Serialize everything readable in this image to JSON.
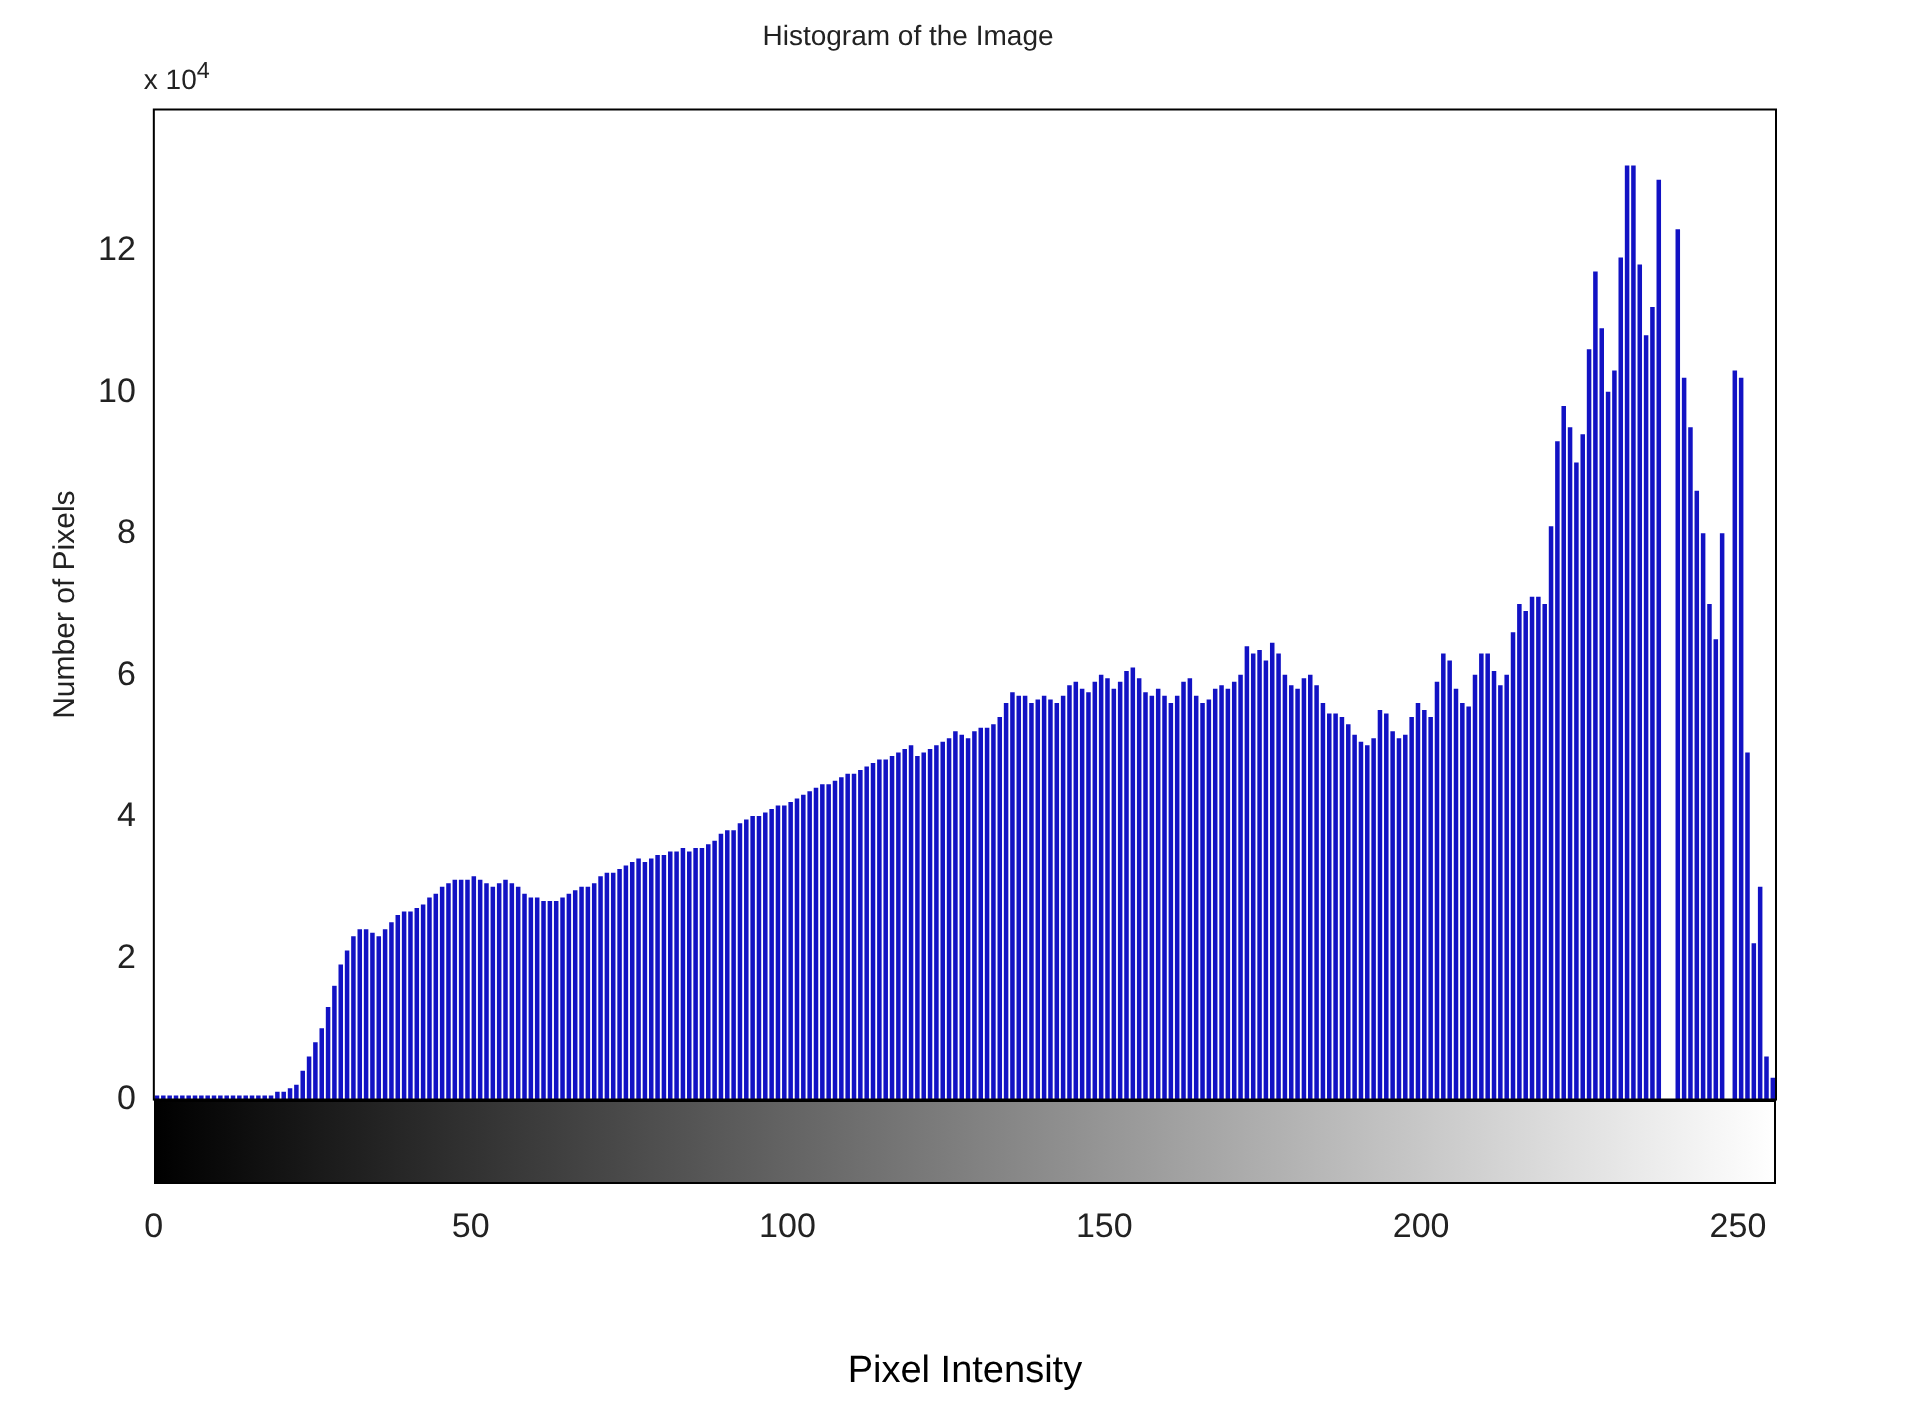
{
  "chart_data": {
    "type": "histogram",
    "title": "Histogram of the Image",
    "xlabel": "Pixel Intensity",
    "ylabel": "Number of Pixels",
    "annotations": [
      "x 10$^{4}$"
    ],
    "bins": [
      0,
      1,
      2,
      3,
      4,
      5,
      6,
      7,
      8,
      9,
      10,
      11,
      12,
      13,
      14,
      15,
      16,
      17,
      18,
      19,
      20,
      21,
      22,
      23,
      24,
      25,
      26,
      27,
      28,
      29,
      30,
      31,
      32,
      33,
      34,
      35,
      36,
      37,
      38,
      39,
      40,
      41,
      42,
      43,
      44,
      45,
      46,
      47,
      48,
      49,
      50,
      51,
      52,
      53,
      54,
      55,
      56,
      57,
      58,
      59,
      60,
      61,
      62,
      63,
      64,
      65,
      66,
      67,
      68,
      69,
      70,
      71,
      72,
      73,
      74,
      75,
      76,
      77,
      78,
      79,
      80,
      81,
      82,
      83,
      84,
      85,
      86,
      87,
      88,
      89,
      90,
      91,
      92,
      93,
      94,
      95,
      96,
      97,
      98,
      99,
      100,
      101,
      102,
      103,
      104,
      105,
      106,
      107,
      108,
      109,
      110,
      111,
      112,
      113,
      114,
      115,
      116,
      117,
      118,
      119,
      120,
      121,
      122,
      123,
      124,
      125,
      126,
      127,
      128,
      129,
      130,
      131,
      132,
      133,
      134,
      135,
      136,
      137,
      138,
      139,
      140,
      141,
      142,
      143,
      144,
      145,
      146,
      147,
      148,
      149,
      150,
      151,
      152,
      153,
      154,
      155,
      156,
      157,
      158,
      159,
      160,
      161,
      162,
      163,
      164,
      165,
      166,
      167,
      168,
      169,
      170,
      171,
      172,
      173,
      174,
      175,
      176,
      177,
      178,
      179,
      180,
      181,
      182,
      183,
      184,
      185,
      186,
      187,
      188,
      189,
      190,
      191,
      192,
      193,
      194,
      195,
      196,
      197,
      198,
      199,
      200,
      201,
      202,
      203,
      204,
      205,
      206,
      207,
      208,
      209,
      210,
      211,
      212,
      213,
      214,
      215,
      216,
      217,
      218,
      219,
      220,
      221,
      222,
      223,
      224,
      225,
      226,
      227,
      228,
      229,
      230,
      231,
      232,
      233,
      234,
      235,
      236,
      237,
      238,
      239,
      240,
      241,
      242,
      243,
      244,
      245,
      246,
      247,
      248,
      249,
      250,
      251,
      252,
      253,
      254,
      255,
      256
    ],
    "values": [
      0.05,
      0.05,
      0.05,
      0.05,
      0.05,
      0.05,
      0.05,
      0.05,
      0.05,
      0.05,
      0.05,
      0.05,
      0.05,
      0.05,
      0.05,
      0.05,
      0.05,
      0.05,
      0.05,
      0.1,
      0.1,
      0.15,
      0.2,
      0.4,
      0.6,
      0.8,
      1.0,
      1.3,
      1.6,
      1.9,
      2.1,
      2.3,
      2.4,
      2.4,
      2.35,
      2.3,
      2.4,
      2.5,
      2.6,
      2.65,
      2.65,
      2.7,
      2.75,
      2.85,
      2.9,
      3.0,
      3.05,
      3.1,
      3.1,
      3.1,
      3.15,
      3.1,
      3.05,
      3.0,
      3.05,
      3.1,
      3.05,
      3.0,
      2.9,
      2.85,
      2.85,
      2.8,
      2.8,
      2.8,
      2.85,
      2.9,
      2.95,
      3.0,
      3.0,
      3.05,
      3.15,
      3.2,
      3.2,
      3.25,
      3.3,
      3.35,
      3.4,
      3.35,
      3.4,
      3.45,
      3.45,
      3.5,
      3.5,
      3.55,
      3.5,
      3.55,
      3.55,
      3.6,
      3.65,
      3.75,
      3.8,
      3.8,
      3.9,
      3.95,
      4.0,
      4.0,
      4.05,
      4.1,
      4.15,
      4.15,
      4.2,
      4.25,
      4.3,
      4.35,
      4.4,
      4.45,
      4.45,
      4.5,
      4.55,
      4.6,
      4.6,
      4.65,
      4.7,
      4.75,
      4.8,
      4.8,
      4.85,
      4.9,
      4.95,
      5.0,
      4.85,
      4.9,
      4.95,
      5.0,
      5.05,
      5.1,
      5.2,
      5.15,
      5.1,
      5.2,
      5.25,
      5.25,
      5.3,
      5.4,
      5.6,
      5.75,
      5.7,
      5.7,
      5.6,
      5.65,
      5.7,
      5.65,
      5.6,
      5.7,
      5.85,
      5.9,
      5.8,
      5.75,
      5.9,
      6.0,
      5.95,
      5.8,
      5.9,
      6.05,
      6.1,
      5.95,
      5.75,
      5.7,
      5.8,
      5.7,
      5.6,
      5.7,
      5.9,
      5.95,
      5.7,
      5.6,
      5.65,
      5.8,
      5.85,
      5.8,
      5.9,
      6.0,
      6.4,
      6.3,
      6.35,
      6.2,
      6.45,
      6.3,
      6.0,
      5.85,
      5.8,
      5.95,
      6.0,
      5.85,
      5.6,
      5.45,
      5.45,
      5.4,
      5.3,
      5.15,
      5.05,
      5.0,
      5.1,
      5.5,
      5.45,
      5.2,
      5.1,
      5.15,
      5.4,
      5.6,
      5.5,
      5.4,
      5.9,
      6.3,
      6.2,
      5.8,
      5.6,
      5.55,
      6.0,
      6.3,
      6.3,
      6.05,
      5.85,
      6.0,
      6.6,
      7.0,
      6.9,
      7.1,
      7.1,
      7.0,
      8.1,
      9.3,
      9.8,
      9.5,
      9.0,
      9.4,
      10.6,
      11.7,
      10.9,
      10.0,
      10.3,
      11.9,
      13.2,
      13.2,
      11.8,
      10.8,
      11.2,
      13.0,
      null,
      null,
      12.3,
      10.2,
      9.5,
      8.6,
      8.0,
      7.0,
      6.5,
      8.0,
      null,
      10.3,
      10.2,
      4.9,
      2.2,
      3.0,
      0.6,
      0.3
    ],
    "color": "#1212c4",
    "xlim": [
      0,
      256
    ],
    "xticks": [
      0,
      50,
      100,
      150,
      200,
      250
    ],
    "ylim": [
      0,
      14
    ],
    "yticks": [
      0,
      2,
      4,
      6,
      8,
      10,
      12
    ],
    "grid": false,
    "legend": false
  }
}
